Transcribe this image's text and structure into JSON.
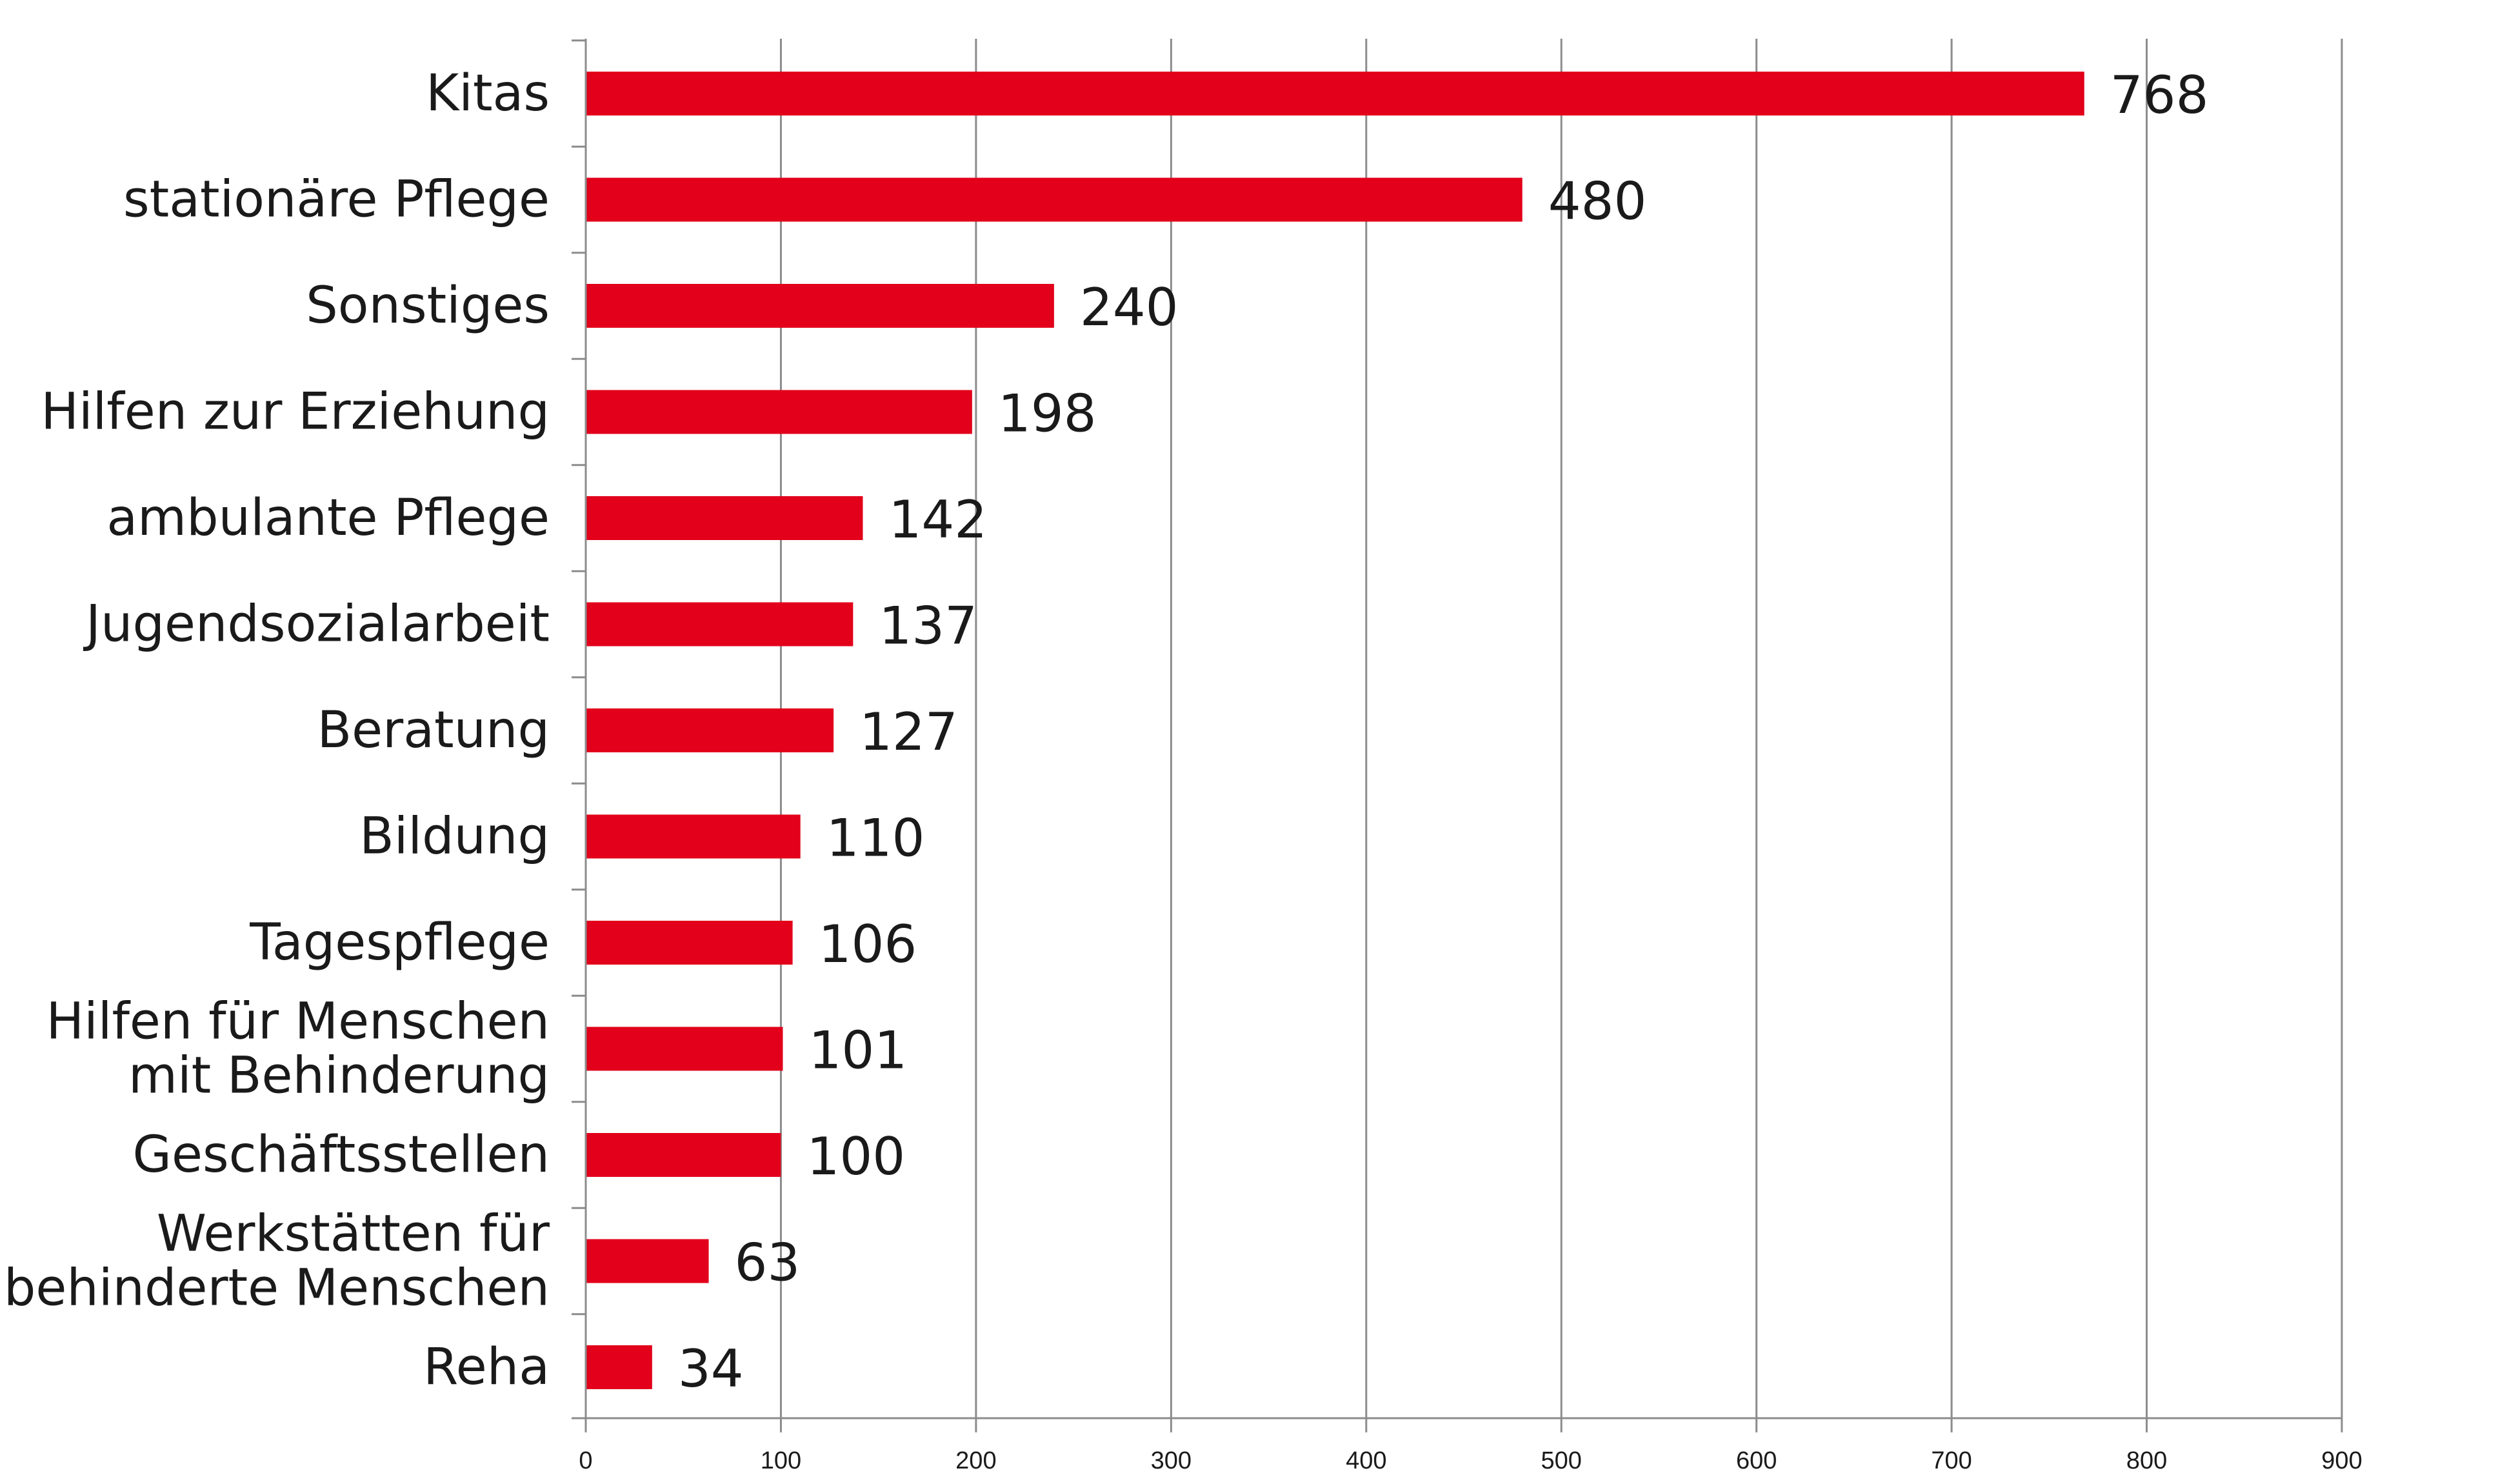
{
  "chart_data": {
    "type": "bar",
    "orientation": "horizontal",
    "categories": [
      [
        "Kitas"
      ],
      [
        "stationäre Pflege"
      ],
      [
        "Sonstiges"
      ],
      [
        "Hilfen zur Erziehung"
      ],
      [
        "ambulante Pflege"
      ],
      [
        "Jugendsozialarbeit"
      ],
      [
        "Beratung"
      ],
      [
        "Bildung"
      ],
      [
        "Tagespflege"
      ],
      [
        "Hilfen für Menschen",
        "mit Behinderung"
      ],
      [
        "Geschäftsstellen"
      ],
      [
        "Werkstätten für",
        "behinderte Menschen"
      ],
      [
        "Reha"
      ]
    ],
    "values": [
      768,
      480,
      240,
      198,
      142,
      137,
      127,
      110,
      106,
      101,
      100,
      63,
      34
    ],
    "value_labels": [
      "768",
      "480",
      "240",
      "198",
      "142",
      "137",
      "127",
      "110",
      "106",
      "101",
      "100",
      "63",
      "34"
    ],
    "xlim": [
      0,
      900
    ],
    "xticks": [
      0,
      100,
      200,
      300,
      400,
      500,
      600,
      700,
      800,
      900
    ],
    "title": "",
    "xlabel": "",
    "ylabel": "",
    "grid": "vertical",
    "legend": "none",
    "bar_color": "#e2001a"
  }
}
